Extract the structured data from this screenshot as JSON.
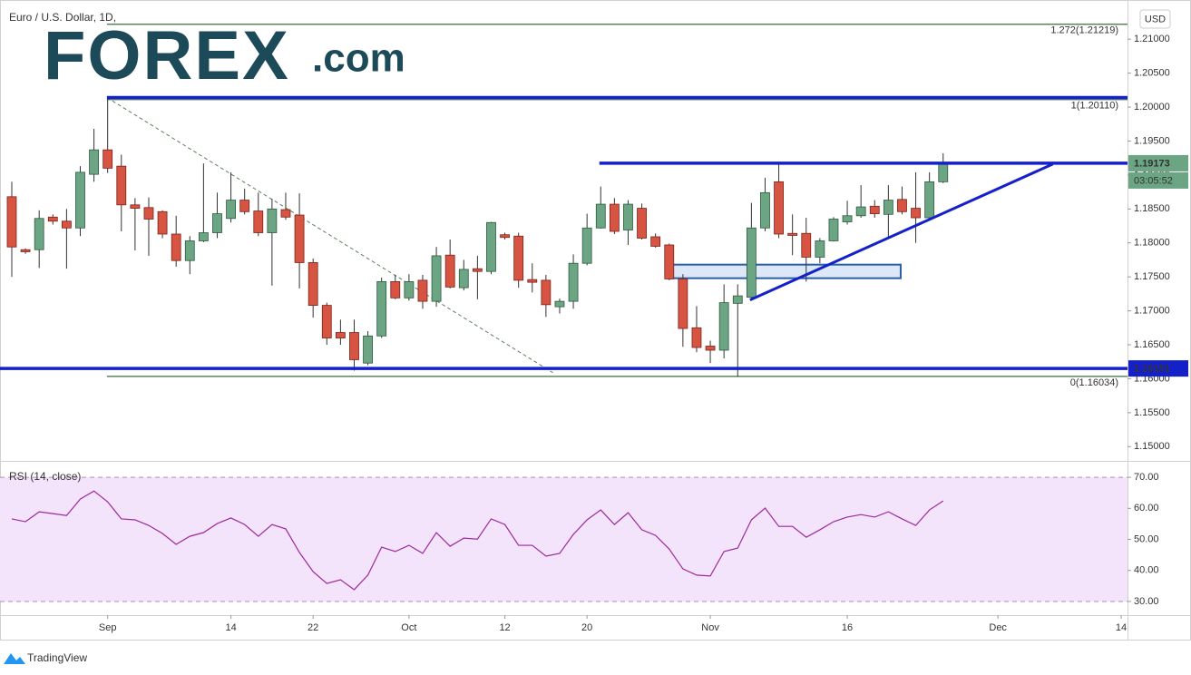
{
  "chart_data": [
    {
      "type": "candlestick",
      "title": "Euro / U.S. Dollar, 1D,",
      "currency": "USD",
      "logo": "FOREX",
      "logo_suffix": ".com",
      "up_color": "#6ba583",
      "down_color": "#d75442",
      "open": [
        1.1868,
        1.179,
        1.179,
        1.1838,
        1.1832,
        1.1822,
        1.1901,
        1.1937,
        1.1913,
        1.1856,
        1.1852,
        1.1846,
        1.1813,
        1.1774,
        1.1803,
        1.1815,
        1.1836,
        1.1863,
        1.1847,
        1.1815,
        1.1849,
        1.1841,
        1.1771,
        1.1708,
        1.1668,
        1.1668,
        1.1623,
        1.1663,
        1.1743,
        1.1719,
        1.1745,
        1.1714,
        1.1782,
        1.1734,
        1.1762,
        1.1758,
        1.1812,
        1.181,
        1.1746,
        1.1745,
        1.1706,
        1.1714,
        1.177,
        1.1822,
        1.1857,
        1.1819,
        1.1851,
        1.1809,
        1.1797,
        1.1747,
        1.1675,
        1.1648,
        1.1642,
        1.1711,
        1.172,
        1.1822,
        1.189,
        1.1814,
        1.1814,
        1.1779,
        1.1803,
        1.1831,
        1.184,
        1.1854,
        1.1842,
        1.1864,
        1.1851,
        1.1837,
        1.189
      ],
      "high": [
        1.189,
        1.1792,
        1.1848,
        1.1842,
        1.185,
        1.1913,
        1.1968,
        1.2012,
        1.193,
        1.1866,
        1.1867,
        1.1848,
        1.184,
        1.181,
        1.1917,
        1.1874,
        1.1904,
        1.188,
        1.1874,
        1.1865,
        1.1874,
        1.1873,
        1.1777,
        1.1712,
        1.1687,
        1.1687,
        1.167,
        1.1749,
        1.1753,
        1.1754,
        1.1753,
        1.1794,
        1.1805,
        1.1775,
        1.1781,
        1.1831,
        1.1815,
        1.1815,
        1.177,
        1.1753,
        1.1718,
        1.1783,
        1.1843,
        1.1883,
        1.1866,
        1.1863,
        1.1858,
        1.1814,
        1.1799,
        1.1754,
        1.1707,
        1.1656,
        1.1739,
        1.1739,
        1.1859,
        1.1896,
        1.1917,
        1.1842,
        1.1837,
        1.1807,
        1.1838,
        1.1862,
        1.1885,
        1.1863,
        1.1885,
        1.1883,
        1.1904,
        1.1904,
        1.1932
      ],
      "low": [
        1.175,
        1.1784,
        1.1763,
        1.1827,
        1.1762,
        1.181,
        1.189,
        1.1903,
        1.1817,
        1.1789,
        1.1781,
        1.1807,
        1.1765,
        1.1754,
        1.1801,
        1.1807,
        1.183,
        1.1842,
        1.181,
        1.1737,
        1.1834,
        1.1733,
        1.169,
        1.165,
        1.165,
        1.1612,
        1.162,
        1.166,
        1.1717,
        1.1715,
        1.1703,
        1.1706,
        1.1733,
        1.173,
        1.1717,
        1.1754,
        1.1805,
        1.1734,
        1.1727,
        1.1691,
        1.1696,
        1.1703,
        1.1767,
        1.1821,
        1.1813,
        1.1797,
        1.1805,
        1.1793,
        1.1745,
        1.1647,
        1.1639,
        1.1623,
        1.163,
        1.1603,
        1.1717,
        1.1817,
        1.1807,
        1.1782,
        1.1743,
        1.177,
        1.1802,
        1.1827,
        1.1837,
        1.1837,
        1.1806,
        1.1842,
        1.18,
        1.1834,
        1.1888
      ],
      "close": [
        1.1794,
        1.1787,
        1.1836,
        1.1832,
        1.1822,
        1.1904,
        1.1937,
        1.191,
        1.1856,
        1.1851,
        1.1835,
        1.1813,
        1.1774,
        1.1803,
        1.1815,
        1.1843,
        1.1863,
        1.1846,
        1.1815,
        1.185,
        1.1838,
        1.1771,
        1.1708,
        1.166,
        1.166,
        1.1628,
        1.1663,
        1.1743,
        1.1719,
        1.1743,
        1.1714,
        1.1781,
        1.1735,
        1.1761,
        1.1758,
        1.183,
        1.1808,
        1.1745,
        1.1742,
        1.1709,
        1.1714,
        1.177,
        1.1822,
        1.1857,
        1.1817,
        1.1857,
        1.1807,
        1.1795,
        1.1747,
        1.1674,
        1.1646,
        1.1642,
        1.1712,
        1.1722,
        1.1822,
        1.1874,
        1.1813,
        1.1811,
        1.1779,
        1.1803,
        1.1835,
        1.184,
        1.1853,
        1.1843,
        1.1863,
        1.1846,
        1.1837,
        1.189,
        1.1917
      ],
      "xlim": [
        -0.86,
        81.46
      ],
      "xticks": [
        {
          "value": 7,
          "label": "Sep"
        },
        {
          "value": 16,
          "label": "14"
        },
        {
          "value": 22,
          "label": "22"
        },
        {
          "value": 29,
          "label": "Oct"
        },
        {
          "value": 36,
          "label": "12"
        },
        {
          "value": 42,
          "label": "20"
        },
        {
          "value": 51,
          "label": "Nov"
        },
        {
          "value": 61,
          "label": "16"
        },
        {
          "value": 72,
          "label": "Dec"
        },
        {
          "value": 81,
          "label": "14"
        }
      ],
      "ylim": [
        1.1479,
        1.2151
      ],
      "yticks": [
        {
          "value": 1.15,
          "label": "1.15000"
        },
        {
          "value": 1.155,
          "label": "1.15500"
        },
        {
          "value": 1.16,
          "label": "1.16000"
        },
        {
          "value": 1.165,
          "label": "1.16500"
        },
        {
          "value": 1.17,
          "label": "1.17000"
        },
        {
          "value": 1.175,
          "label": "1.17500"
        },
        {
          "value": 1.18,
          "label": "1.18000"
        },
        {
          "value": 1.185,
          "label": "1.18500"
        },
        {
          "value": 1.19,
          "label": "1.19000"
        },
        {
          "value": 1.195,
          "label": "1.19500"
        },
        {
          "value": 1.2,
          "label": "1.20000"
        },
        {
          "value": 1.205,
          "label": "1.20500"
        },
        {
          "value": 1.21,
          "label": "1.21000"
        }
      ],
      "fib_color": "#3d6e3d",
      "fib_levels": [
        {
          "value": 1.21219,
          "label": "1.272(1.21219)"
        },
        {
          "value": 1.2011,
          "label": "1(1.20110)"
        },
        {
          "value": 1.16034,
          "label": "0(1.16034)"
        }
      ],
      "line_color": "#1420c8",
      "hlines": [
        {
          "value": 1.2014,
          "from": 6.95
        },
        {
          "value": 1.19173,
          "from": 42.9
        },
        {
          "value": 1.16151,
          "from": -0.86
        }
      ],
      "price_labels": [
        {
          "value": 1.19173,
          "label": "1.19173",
          "color": "#6ba583"
        },
        {
          "value": 1.16151,
          "label": "1.16151",
          "color": "#1420c8"
        }
      ],
      "countdown": "03:05:52",
      "trendline": {
        "x": [
          53.9,
          76
        ],
        "y": [
          1.1716,
          1.1916
        ]
      },
      "dashed_line": {
        "x": [
          6.95,
          39.5
        ],
        "y": [
          1.2014,
          1.1609
        ]
      },
      "box": {
        "x": [
          47.8,
          64.9
        ],
        "y": [
          1.1748,
          1.1768
        ],
        "color": "#2a5fa8"
      }
    },
    {
      "type": "line",
      "title": "RSI (14, close)",
      "band_color": "#f3e3fb",
      "series": [
        {
          "color": "#9c2a9c",
          "values": [
            56.6,
            55.7,
            58.9,
            58.3,
            57.7,
            63,
            65.6,
            62.1,
            56.6,
            56.3,
            54.5,
            51.9,
            48.4,
            51,
            52.2,
            55.1,
            56.9,
            54.8,
            51,
            54.8,
            53.4,
            45.8,
            39.6,
            35.8,
            37,
            33.8,
            38.5,
            47.5,
            46.1,
            48.1,
            45.5,
            52.2,
            47.8,
            50.4,
            50.1,
            56.6,
            54.8,
            48.1,
            48.1,
            44.6,
            45.5,
            51.6,
            56.3,
            59.5,
            54.8,
            58.6,
            53.1,
            51.3,
            46.9,
            40.5,
            38.5,
            38.2,
            46.1,
            47.2,
            56.3,
            60.1,
            54.2,
            54.2,
            50.7,
            53.1,
            55.7,
            57.2,
            58,
            57.2,
            58.9,
            56.6,
            54.5,
            59.5,
            62.4
          ]
        }
      ],
      "ylim": [
        25.6,
        75.3
      ],
      "yticks": [
        {
          "value": 30,
          "label": "30.00"
        },
        {
          "value": 40,
          "label": "40.00"
        },
        {
          "value": 50,
          "label": "50.00"
        },
        {
          "value": 60,
          "label": "60.00"
        },
        {
          "value": 70,
          "label": "70.00"
        }
      ]
    }
  ],
  "footer": "TradingView"
}
